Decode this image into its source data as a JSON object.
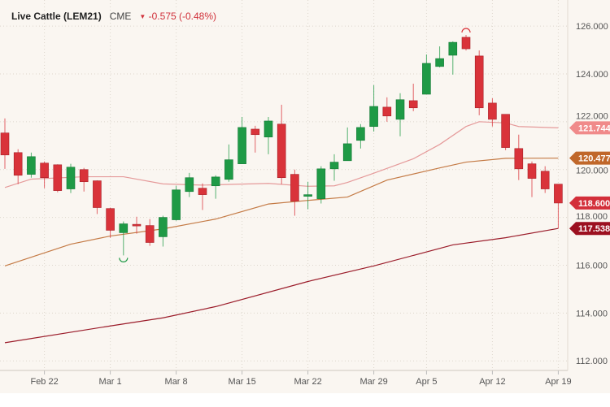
{
  "header": {
    "title": "Live Cattle (LEM21)",
    "exchange": "CME",
    "change": "-0.575 (-0.48%)",
    "change_direction_icon": "triangle-down-icon"
  },
  "colors": {
    "background": "#faf6f1",
    "up": "#1f9a46",
    "down": "#d9333a",
    "ma_short": "#e59a9a",
    "ma_mid": "#c47a45",
    "ma_long": "#9b1c2a"
  },
  "chart_data": {
    "type": "candlestick",
    "ylim": [
      111.6,
      126.75
    ],
    "y_ticks": [
      "112.000",
      "114.000",
      "116.000",
      "118.000",
      "120.000",
      "122.000",
      "124.000",
      "126.000"
    ],
    "x_ticks": [
      "Feb 22",
      "Mar 1",
      "Mar 8",
      "Mar 15",
      "Mar 22",
      "Mar 29",
      "Apr 5",
      "Apr 12",
      "Apr 19"
    ],
    "grid": true,
    "candles": [
      {
        "date": "Feb 17",
        "o": 121.53,
        "h": 122.14,
        "l": 120.03,
        "c": 120.61
      },
      {
        "date": "Feb 18",
        "o": 120.71,
        "h": 120.85,
        "l": 119.39,
        "c": 119.76
      },
      {
        "date": "Feb 19",
        "o": 119.8,
        "h": 120.71,
        "l": 119.66,
        "c": 120.54
      },
      {
        "date": "Feb 22",
        "o": 120.27,
        "h": 120.34,
        "l": 119.22,
        "c": 119.66
      },
      {
        "date": "Feb 23",
        "o": 120.2,
        "h": 120.22,
        "l": 119.05,
        "c": 119.12
      },
      {
        "date": "Feb 24",
        "o": 119.19,
        "h": 120.24,
        "l": 119.02,
        "c": 120.1
      },
      {
        "date": "Feb 25",
        "o": 120.0,
        "h": 120.07,
        "l": 119.08,
        "c": 119.49
      },
      {
        "date": "Feb 26",
        "o": 119.53,
        "h": 119.55,
        "l": 118.14,
        "c": 118.41
      },
      {
        "date": "Mar 1",
        "o": 118.37,
        "h": 118.41,
        "l": 117.15,
        "c": 117.46
      },
      {
        "date": "Mar 2",
        "o": 117.36,
        "h": 117.83,
        "l": 116.41,
        "c": 117.73
      },
      {
        "date": "Mar 3",
        "o": 117.71,
        "h": 118.03,
        "l": 117.32,
        "c": 117.66
      },
      {
        "date": "Mar 4",
        "o": 117.66,
        "h": 117.93,
        "l": 116.81,
        "c": 116.95
      },
      {
        "date": "Mar 5",
        "o": 117.19,
        "h": 118.07,
        "l": 116.78,
        "c": 118.0
      },
      {
        "date": "Mar 8",
        "o": 117.9,
        "h": 119.32,
        "l": 117.86,
        "c": 119.15
      },
      {
        "date": "Mar 9",
        "o": 119.08,
        "h": 119.86,
        "l": 118.85,
        "c": 119.66
      },
      {
        "date": "Mar 10",
        "o": 119.22,
        "h": 119.42,
        "l": 118.31,
        "c": 118.95
      },
      {
        "date": "Mar 11",
        "o": 119.32,
        "h": 119.76,
        "l": 118.78,
        "c": 119.69
      },
      {
        "date": "Mar 12",
        "o": 119.59,
        "h": 121.05,
        "l": 119.49,
        "c": 120.41
      },
      {
        "date": "Mar 15",
        "o": 120.24,
        "h": 122.2,
        "l": 120.24,
        "c": 121.76
      },
      {
        "date": "Mar 16",
        "o": 121.69,
        "h": 121.83,
        "l": 120.71,
        "c": 121.46
      },
      {
        "date": "Mar 17",
        "o": 121.36,
        "h": 122.2,
        "l": 120.64,
        "c": 122.03
      },
      {
        "date": "Mar 18",
        "o": 121.9,
        "h": 122.71,
        "l": 119.39,
        "c": 119.66
      },
      {
        "date": "Mar 19",
        "o": 119.8,
        "h": 120.0,
        "l": 118.07,
        "c": 118.68
      },
      {
        "date": "Mar 22",
        "o": 118.93,
        "h": 119.49,
        "l": 118.34,
        "c": 118.95
      },
      {
        "date": "Mar 23",
        "o": 118.78,
        "h": 120.14,
        "l": 118.58,
        "c": 120.03
      },
      {
        "date": "Mar 24",
        "o": 120.03,
        "h": 120.64,
        "l": 119.53,
        "c": 120.31
      },
      {
        "date": "Mar 25",
        "o": 120.37,
        "h": 121.76,
        "l": 120.37,
        "c": 121.08
      },
      {
        "date": "Mar 26",
        "o": 121.22,
        "h": 121.9,
        "l": 120.88,
        "c": 121.76
      },
      {
        "date": "Mar 29",
        "o": 121.8,
        "h": 123.53,
        "l": 121.59,
        "c": 122.64
      },
      {
        "date": "Mar 30",
        "o": 122.61,
        "h": 123.02,
        "l": 122.0,
        "c": 122.24
      },
      {
        "date": "Mar 31",
        "o": 122.1,
        "h": 123.19,
        "l": 121.39,
        "c": 122.92
      },
      {
        "date": "Apr 1",
        "o": 122.88,
        "h": 123.59,
        "l": 122.44,
        "c": 122.58
      },
      {
        "date": "Apr 5",
        "o": 123.15,
        "h": 124.81,
        "l": 123.15,
        "c": 124.44
      },
      {
        "date": "Apr 6",
        "o": 124.31,
        "h": 125.15,
        "l": 124.27,
        "c": 124.64
      },
      {
        "date": "Apr 7",
        "o": 124.78,
        "h": 125.36,
        "l": 123.97,
        "c": 125.32
      },
      {
        "date": "Apr 8",
        "o": 125.53,
        "h": 125.63,
        "l": 124.98,
        "c": 125.05
      },
      {
        "date": "Apr 9",
        "o": 124.75,
        "h": 124.98,
        "l": 122.27,
        "c": 122.58
      },
      {
        "date": "Apr 12",
        "o": 122.78,
        "h": 122.98,
        "l": 121.8,
        "c": 122.1
      },
      {
        "date": "Apr 13",
        "o": 122.31,
        "h": 122.31,
        "l": 120.81,
        "c": 120.92
      },
      {
        "date": "Apr 14",
        "o": 120.88,
        "h": 121.46,
        "l": 119.56,
        "c": 120.03
      },
      {
        "date": "Apr 15",
        "o": 120.24,
        "h": 120.34,
        "l": 118.85,
        "c": 119.63
      },
      {
        "date": "Apr 16",
        "o": 119.93,
        "h": 120.14,
        "l": 119.02,
        "c": 119.19
      },
      {
        "date": "Apr 19",
        "o": 119.39,
        "h": 119.39,
        "l": 117.54,
        "c": 118.6
      }
    ],
    "moving_averages": [
      {
        "color": "#e59a9a",
        "last": "121.744",
        "label_bg": "#f08a8a",
        "points": [
          [
            "Feb 17",
            119.25
          ],
          [
            "Feb 19",
            119.6
          ],
          [
            "Feb 25",
            119.7
          ],
          [
            "Mar 2",
            119.7
          ],
          [
            "Mar 5",
            119.4
          ],
          [
            "Mar 10",
            119.35
          ],
          [
            "Mar 17",
            119.42
          ],
          [
            "Mar 22",
            119.3
          ],
          [
            "Mar 24",
            119.32
          ],
          [
            "Mar 25",
            119.46
          ],
          [
            "Mar 29",
            119.85
          ],
          [
            "Apr 1",
            120.45
          ],
          [
            "Apr 6",
            121.05
          ],
          [
            "Apr 8",
            121.8
          ],
          [
            "Apr 9",
            122.0
          ],
          [
            "Apr 13",
            121.95
          ],
          [
            "Apr 14",
            121.8
          ],
          [
            "Apr 19",
            121.744
          ]
        ]
      },
      {
        "color": "#c47a45",
        "last": "120.477",
        "label_bg": "#c0672a",
        "points": [
          [
            "Feb 17",
            115.97
          ],
          [
            "Feb 24",
            116.88
          ],
          [
            "Mar 1",
            117.22
          ],
          [
            "Mar 5",
            117.52
          ],
          [
            "Mar 11",
            117.93
          ],
          [
            "Mar 17",
            118.56
          ],
          [
            "Mar 22",
            118.71
          ],
          [
            "Mar 25",
            118.85
          ],
          [
            "Mar 30",
            119.56
          ],
          [
            "Apr 6",
            120.07
          ],
          [
            "Apr 8",
            120.31
          ],
          [
            "Apr 13",
            120.47
          ],
          [
            "Apr 19",
            120.477
          ]
        ]
      },
      {
        "color": "#9b1c2a",
        "last": "117.538",
        "label_bg": "#9c1020",
        "points": [
          [
            "Feb 17",
            112.76
          ],
          [
            "Mar 1",
            113.46
          ],
          [
            "Mar 5",
            113.8
          ],
          [
            "Mar 11",
            114.27
          ],
          [
            "Mar 22",
            115.32
          ],
          [
            "Mar 29",
            115.97
          ],
          [
            "Apr 7",
            116.85
          ],
          [
            "Apr 13",
            117.15
          ],
          [
            "Apr 19",
            117.538
          ]
        ]
      }
    ],
    "last_price": {
      "value": "118.600",
      "bg": "#d32f3a"
    },
    "markers": [
      {
        "type": "low",
        "date": "Mar 2"
      },
      {
        "type": "high",
        "date": "Apr 8"
      }
    ]
  }
}
